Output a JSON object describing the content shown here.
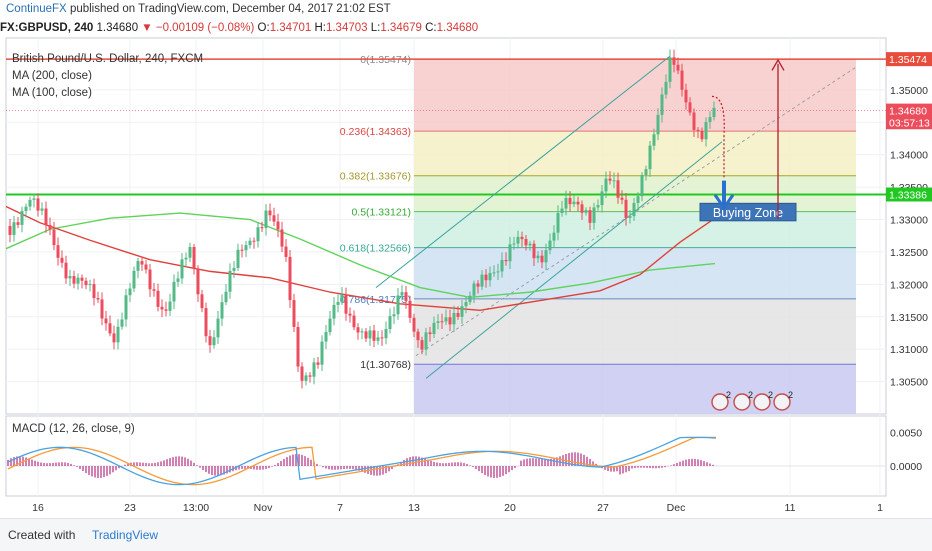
{
  "header": {
    "brand": "ContinueFX",
    "published": "published on TradingView.com, December 04, 2017 21:02 EST",
    "symbol": "FX:GBPUSD, 240",
    "last": "1.34680",
    "change": "▼ −0.00109 (−0.08%)",
    "o_label": "O:",
    "o": "1.34701",
    "h_label": "H:",
    "h": "1.34703",
    "l_label": "L:",
    "l": "1.34679",
    "c_label": "C:",
    "c": "1.34680"
  },
  "legend": {
    "title": "British Pound/U.S. Dollar, 240, FXCM",
    "ma200": "MA (200, close)",
    "ma100": "MA (100, close)"
  },
  "macd_label": "MACD (12, 26, close, 9)",
  "footer": {
    "created": "Created with",
    "brand": "TradingView"
  },
  "colors": {
    "up": "#53b987",
    "down": "#eb4d5c",
    "ma100": "#e0403a",
    "ma200": "#5fd35a",
    "macd": "#4aa3e0",
    "signal": "#f59b3a",
    "hist": "#c75fa0",
    "resistance": "#e74c3c",
    "support": "#22c822",
    "zone": "#3d74b8"
  },
  "chart_data": {
    "type": "candlestick",
    "y_range": [
      1.3,
      1.358
    ],
    "price_ticks": [
      "1.35000",
      "1.34500",
      "1.34000",
      "1.33500",
      "1.33000",
      "1.32500",
      "1.32000",
      "1.31500",
      "1.31000",
      "1.30500"
    ],
    "price_tick_values": [
      1.35,
      1.345,
      1.34,
      1.335,
      1.33,
      1.325,
      1.32,
      1.315,
      1.31,
      1.305
    ],
    "time_ticks": [
      "16",
      "23",
      "13:00",
      "Nov",
      "7",
      "13",
      "20",
      "27",
      "Dec",
      "11",
      "1"
    ],
    "badges": [
      {
        "label": "1.35474",
        "value": 1.35474,
        "color": "#e74c3c"
      },
      {
        "label": "1.34680",
        "value": 1.3468,
        "color": "#eb4d5c"
      },
      {
        "label": "03:57:13",
        "value": 1.345,
        "color": "#eb4d5c"
      },
      {
        "label": "1.33386",
        "value": 1.33386,
        "color": "#22c822"
      }
    ],
    "fib_levels": [
      {
        "label": "0(1.35474)",
        "value": 1.35474
      },
      {
        "label": "0.236(1.34363)",
        "value": 1.34363
      },
      {
        "label": "0.382(1.33676)",
        "value": 1.33676
      },
      {
        "label": "0.5(1.33121)",
        "value": 1.33121
      },
      {
        "label": "0.618(1.32566)",
        "value": 1.32566
      },
      {
        "label": "0.786(1.31775)",
        "value": 1.31775
      },
      {
        "label": "1(1.30768)",
        "value": 1.30768
      }
    ],
    "annotation": "Buying Zone",
    "buying_zone": [
      1.3298,
      1.3325
    ],
    "macd_ticks": [
      "0.0050",
      "0.0000"
    ],
    "macd_tick_values": [
      0.005,
      0.0
    ],
    "macd_range": [
      -0.0045,
      0.0075
    ],
    "event_icons": [
      "2",
      "2",
      "2",
      "2"
    ]
  }
}
